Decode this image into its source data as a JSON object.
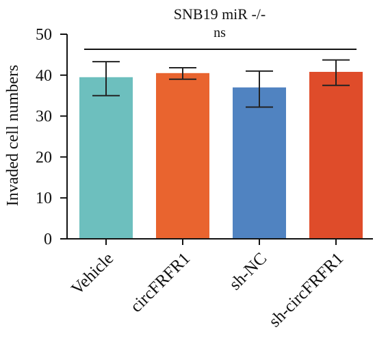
{
  "chart_data": {
    "type": "bar",
    "title": "SNB19 miR -/-",
    "significance_label": "ns",
    "xlabel": "",
    "ylabel": "Invaded cell numbers",
    "ylim": [
      0,
      50
    ],
    "yticks": [
      0,
      10,
      20,
      30,
      40,
      50
    ],
    "categories": [
      "Vehicle",
      "circFRFR1",
      "sh-NC",
      "sh-circFRFR1"
    ],
    "values": [
      39.5,
      40.5,
      37.0,
      40.8
    ],
    "error_upper": [
      43.3,
      41.8,
      41.0,
      43.7
    ],
    "error_lower": [
      35.0,
      39.0,
      32.2,
      37.5
    ],
    "colors": [
      "#6dbfbe",
      "#e9642f",
      "#5083c1",
      "#df4c2a"
    ],
    "grid": false,
    "legend": "none"
  }
}
